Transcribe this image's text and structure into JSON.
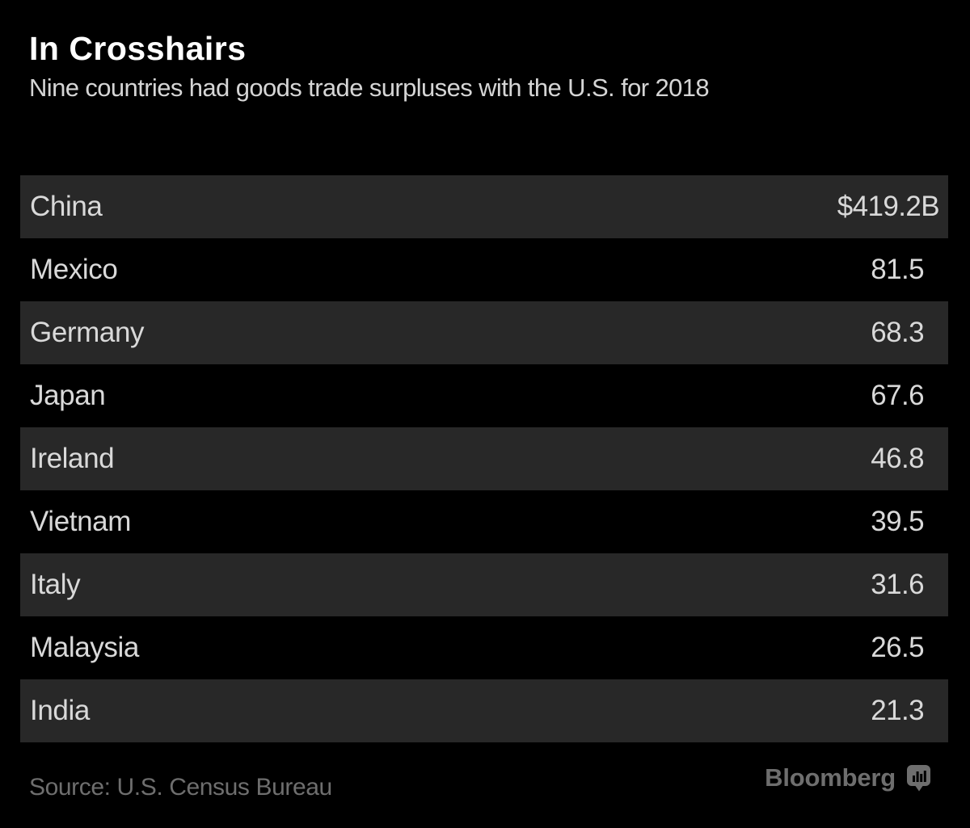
{
  "title": "In Crosshairs",
  "subtitle": "Nine countries had goods trade surpluses with the U.S. for 2018",
  "source_note": "Source: U.S. Census Bureau",
  "brand": {
    "wordmark": "Bloomberg",
    "icon": "bloomberg-speech-bubble-chart-icon"
  },
  "colors": {
    "background": "#000000",
    "row_stripe": "#282828",
    "row_text": "#d9d9d9",
    "title": "#ffffff",
    "subtitle": "#d5d5d5",
    "source": "#6e6e6e",
    "brand": "#6e6e6e"
  },
  "chart_data": {
    "type": "bar",
    "title": "In Crosshairs",
    "subtitle": "Nine countries had goods trade surpluses with the U.S. for 2018",
    "unit": "USD billions",
    "year_shown": "2018",
    "categories": [
      "China",
      "Mexico",
      "Germany",
      "Japan",
      "Ireland",
      "Vietnam",
      "Italy",
      "Malaysia",
      "India"
    ],
    "values": [
      419.2,
      81.5,
      68.3,
      67.6,
      46.8,
      39.5,
      31.6,
      26.5,
      21.3
    ],
    "value_labels": [
      "$419.2B",
      "81.5",
      "68.3",
      "67.6",
      "46.8",
      "39.5",
      "31.6",
      "26.5",
      "21.3"
    ],
    "source": "U.S. Census Bureau",
    "legend": "none",
    "grid": "off",
    "orientation": "horizontal-rows",
    "row_striping": "odd-rows-gray"
  }
}
